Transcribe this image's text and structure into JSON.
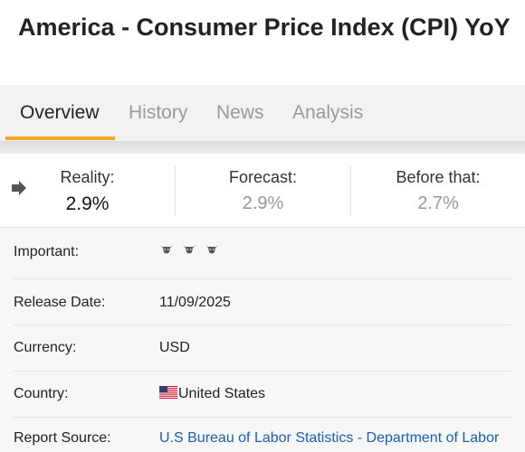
{
  "header": {
    "title": "America - Consumer Price Index (CPI) YoY"
  },
  "tabs": [
    {
      "label": "Overview",
      "active": true
    },
    {
      "label": "History",
      "active": false
    },
    {
      "label": "News",
      "active": false
    },
    {
      "label": "Analysis",
      "active": false
    }
  ],
  "stats": {
    "reality": {
      "label": "Reality:",
      "value": "2.9%"
    },
    "forecast": {
      "label": "Forecast:",
      "value": "2.9%"
    },
    "before": {
      "label": "Before that:",
      "value": "2.7%"
    },
    "trend_icon": "arrow-right-icon"
  },
  "details": {
    "important": {
      "label": "Important:",
      "level": 3,
      "max": 3,
      "icon": "bull-icon"
    },
    "release_date": {
      "label": "Release Date:",
      "value": "11/09/2025"
    },
    "currency": {
      "label": "Currency:",
      "value": "USD"
    },
    "country": {
      "label": "Country:",
      "value": "United States",
      "icon": "us-flag-icon"
    },
    "source": {
      "label": "Report Source:",
      "value": "U.S Bureau of Labor Statistics - Department of Labor"
    }
  },
  "colors": {
    "accent": "#f5a623",
    "link": "#1a5fb4",
    "muted": "#9a9a9a"
  }
}
